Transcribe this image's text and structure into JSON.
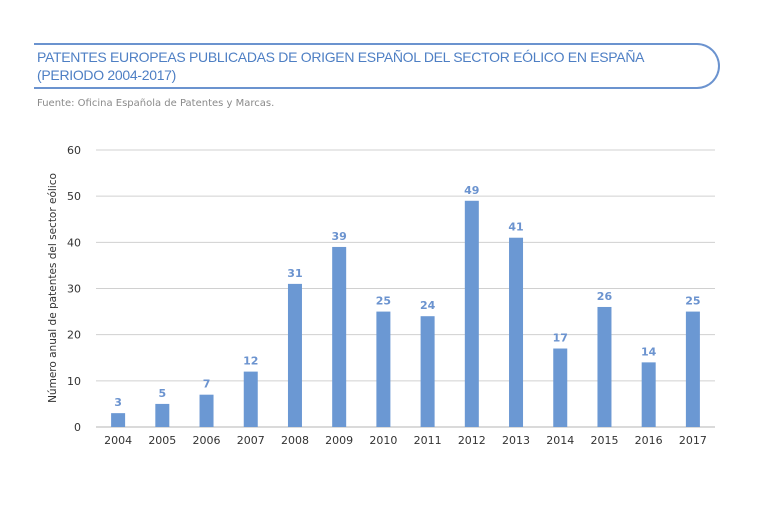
{
  "header": {
    "title_line1": "PATENTES EUROPEAS PUBLICADAS DE ORIGEN ESPAÑOL DEL SECTOR EÓLICO EN ESPAÑA",
    "title_line2": "(PERIODO 2004-2017)",
    "source": "Fuente: Oficina Española de Patentes y Marcas."
  },
  "chart_data": {
    "type": "bar",
    "title": "PATENTES EUROPEAS PUBLICADAS DE ORIGEN ESPAÑOL DEL SECTOR EÓLICO EN ESPAÑA (PERIODO 2004-2017)",
    "xlabel": "",
    "ylabel": "Número anual de patentes del sector eólico",
    "categories": [
      "2004",
      "2005",
      "2006",
      "2007",
      "2008",
      "2009",
      "2010",
      "2011",
      "2012",
      "2013",
      "2014",
      "2015",
      "2016",
      "2017"
    ],
    "values": [
      3,
      5,
      7,
      12,
      31,
      39,
      25,
      24,
      49,
      41,
      17,
      26,
      14,
      25
    ],
    "ylim": [
      0,
      60
    ],
    "yticks": [
      0,
      10,
      20,
      30,
      40,
      50,
      60
    ],
    "grid": true,
    "legend": "none",
    "bar_color": "#6b98d3",
    "label_color": "#6b93cf"
  }
}
